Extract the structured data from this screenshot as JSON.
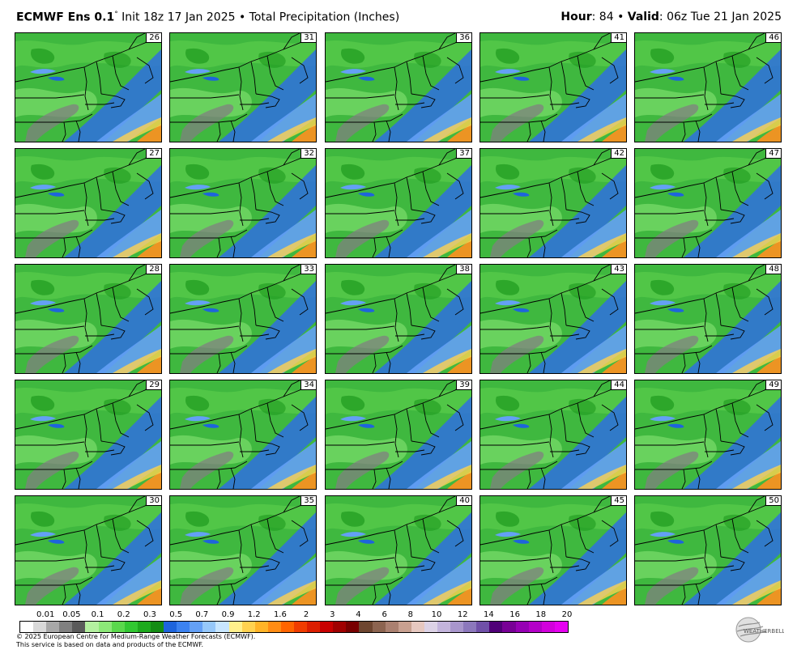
{
  "header": {
    "model": "ECMWF Ens 0.1",
    "degree": "°",
    "init": " Init 18z 17 Jan 2025 • Total Precipitation (Inches)",
    "hour_label": "Hour",
    "hour_value": ": 84 • ",
    "valid_label": "Valid",
    "valid_value": ": 06z Tue 21 Jan 2025"
  },
  "panels": [
    "26",
    "31",
    "36",
    "41",
    "46",
    "27",
    "32",
    "37",
    "42",
    "47",
    "28",
    "33",
    "38",
    "43",
    "48",
    "29",
    "34",
    "39",
    "44",
    "49",
    "30",
    "35",
    "40",
    "45",
    "50"
  ],
  "legend": {
    "ticks": [
      "0.01",
      "0.05",
      "0.1",
      "0.2",
      "0.3",
      "0.5",
      "0.7",
      "0.9",
      "1.2",
      "1.6",
      "2",
      "3",
      "4",
      "6",
      "8",
      "10",
      "12",
      "14",
      "16",
      "18",
      "20"
    ],
    "colors": [
      "#ffffff",
      "#d9d9d9",
      "#a8a8a8",
      "#808080",
      "#5a5a5a",
      "#b4f0a0",
      "#8ce878",
      "#5ad84c",
      "#32c832",
      "#1eaa1e",
      "#148c14",
      "#1e64dc",
      "#3c82f0",
      "#64a0f5",
      "#96c8fa",
      "#c8e6ff",
      "#fff08c",
      "#ffd250",
      "#ffb428",
      "#ff8c14",
      "#ff6400",
      "#f03c00",
      "#dc1e00",
      "#c80000",
      "#a00000",
      "#780000",
      "#6e4630",
      "#8c6450",
      "#aa8070",
      "#c8a090",
      "#e6c8c0",
      "#dcd2e6",
      "#c3b4dc",
      "#a896cc",
      "#8c78bc",
      "#7050a8",
      "#500078",
      "#780096",
      "#9600b4",
      "#b400c8",
      "#d200dc",
      "#e600f0"
    ]
  },
  "footer": {
    "line1": "© 2025 European Centre for Medium-Range Weather Forecasts (ECMWF).",
    "line2": "This service is based on data and products of the ECMWF."
  },
  "logo_text": "WEATHERBELL",
  "colors": {
    "precip_green": "#3fb83f",
    "precip_blue": "#2f6fe0",
    "precip_gray": "#808080",
    "precip_orange": "#ff9020"
  }
}
